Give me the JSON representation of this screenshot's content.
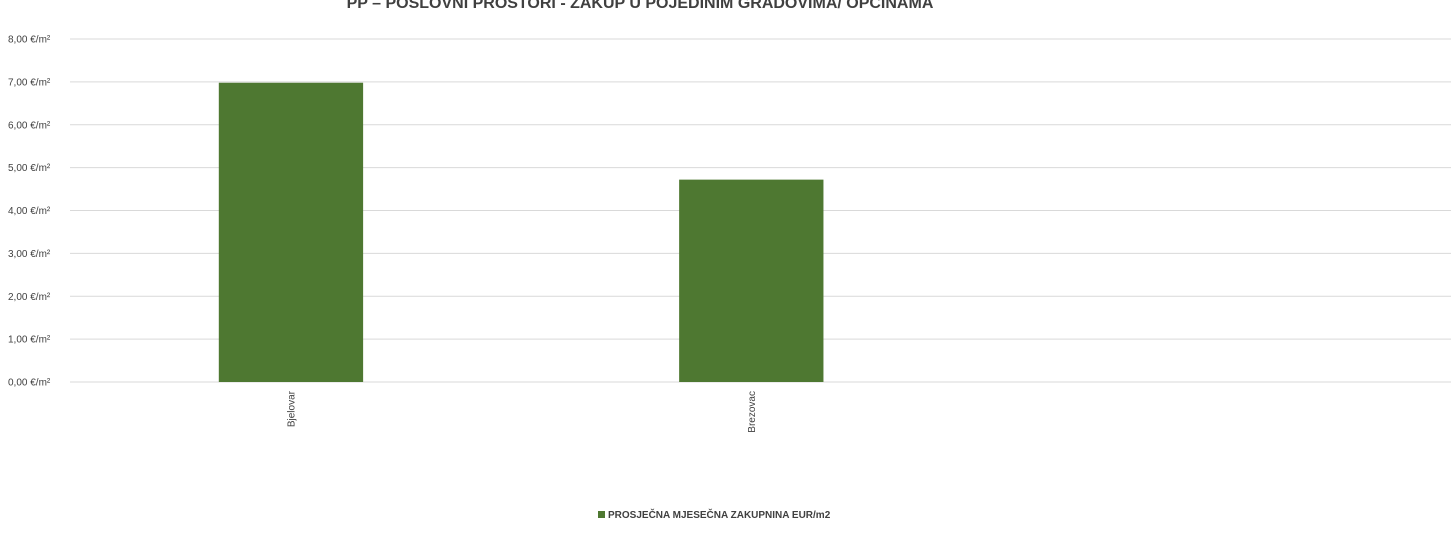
{
  "chart_data": {
    "type": "bar",
    "title": "PP – POSLOVNI PROSTORI - ZAKUP U POJEDINIM GRADOVIMA/ OPĆINAMA",
    "xlabel": "",
    "ylabel": "",
    "categories": [
      "Bjelovar",
      "Brezovac"
    ],
    "series": [
      {
        "name": "PROSJEČNA MJESEČNA ZAKUPNINA EUR/m2",
        "values": [
          6.98,
          4.72
        ],
        "color": "#4e7831"
      }
    ],
    "ylim": [
      0,
      8
    ],
    "y_ticks": [
      0,
      1,
      2,
      3,
      4,
      5,
      6,
      7,
      8
    ],
    "y_tick_labels": [
      "0,00 €/m²",
      "1,00 €/m²",
      "2,00 €/m²",
      "3,00 €/m²",
      "4,00 €/m²",
      "5,00 €/m²",
      "6,00 €/m²",
      "7,00 €/m²",
      "8,00 €/m²"
    ],
    "category_slots": 3,
    "grid": true,
    "legend_position": "bottom"
  }
}
